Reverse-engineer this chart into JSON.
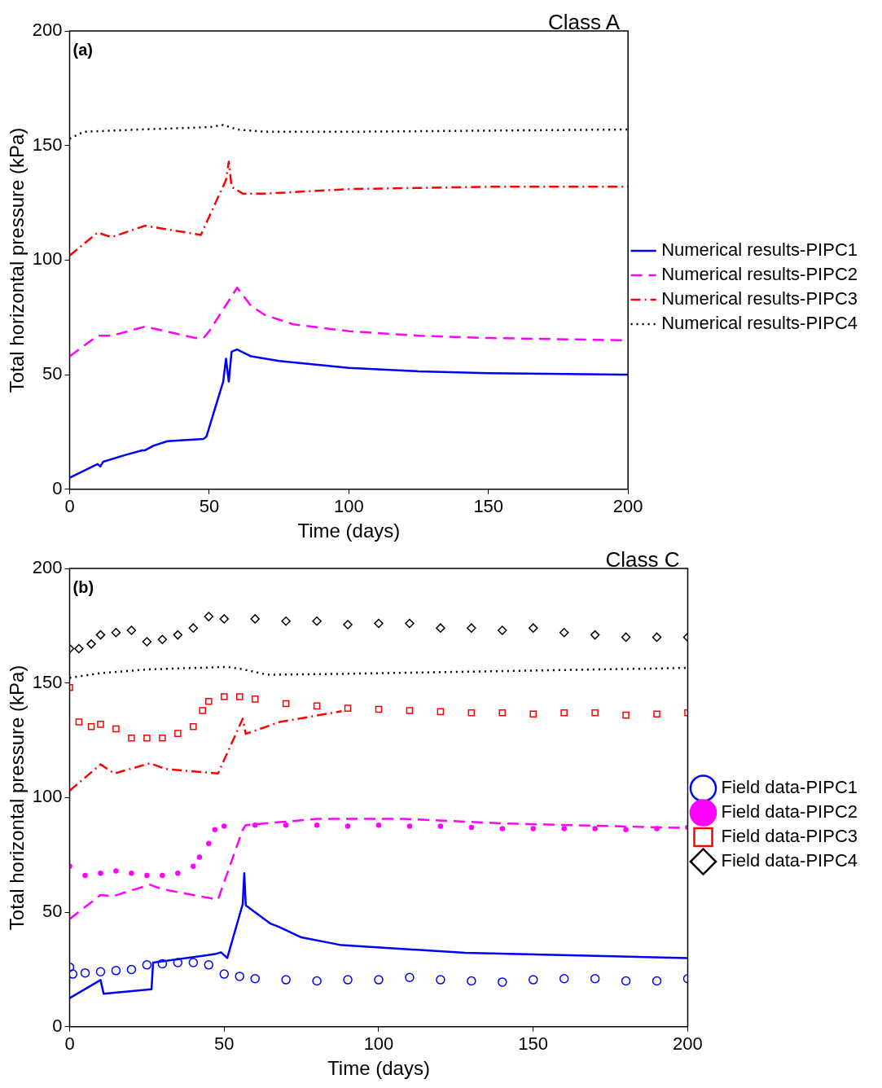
{
  "chart_data": [
    {
      "type": "line",
      "title": "Class A",
      "xlabel": "Time (days)",
      "ylabel": "Total horizontal pressure (kPa)",
      "xlim": [
        0,
        200
      ],
      "xticks": [
        0,
        50,
        100,
        150,
        200
      ],
      "ylim": [
        0,
        200
      ],
      "yticks": [
        0,
        50,
        100,
        150,
        200
      ],
      "grid": false,
      "legend": "right",
      "annotations": [
        "(a)"
      ],
      "series": [
        {
          "name": "Numerical results-PIPC1",
          "color": "#0000ff",
          "line_style": "solid",
          "x": [
            0,
            10,
            11,
            12,
            20,
            26,
            27,
            30,
            35,
            48,
            49,
            55,
            56,
            57,
            58,
            60,
            65,
            75,
            100,
            125,
            150,
            200
          ],
          "values": [
            5,
            11,
            10,
            12,
            15,
            17,
            17,
            19,
            21,
            22,
            23,
            47,
            57,
            47,
            60,
            61,
            58,
            56,
            53,
            51.5,
            50.7,
            50
          ]
        },
        {
          "name": "Numerical results-PIPC2",
          "color": "#ff00ff",
          "line_style": "dashed",
          "x": [
            0,
            10,
            15,
            27,
            45,
            48,
            50,
            60,
            65,
            70,
            80,
            100,
            125,
            150,
            200
          ],
          "values": [
            58,
            67,
            67,
            71,
            66,
            66,
            69,
            88,
            80,
            76,
            72,
            69,
            67,
            66,
            65
          ]
        },
        {
          "name": "Numerical results-PIPC3",
          "color": "#ff0000",
          "line_style": "dashdot",
          "x": [
            0,
            10,
            15,
            27,
            47,
            56,
            57,
            58,
            62,
            70,
            100,
            150,
            200
          ],
          "values": [
            102,
            112,
            110,
            115,
            111,
            135,
            143,
            132,
            129,
            129,
            131,
            132,
            132
          ]
        },
        {
          "name": "Numerical results-PIPC4",
          "color": "#000000",
          "line_style": "dotted",
          "x": [
            0,
            5,
            25,
            50,
            55,
            60,
            70,
            100,
            150,
            200
          ],
          "values": [
            153,
            156,
            157,
            158,
            159,
            157,
            156,
            156,
            156.5,
            157
          ]
        }
      ]
    },
    {
      "type": "line",
      "title": "Class C",
      "xlabel": "Time (days)",
      "ylabel": "Total horizontal pressure (kPa)",
      "xlim": [
        0,
        200
      ],
      "xticks": [
        0,
        50,
        100,
        150,
        200
      ],
      "ylim": [
        0,
        200
      ],
      "yticks": [
        0,
        50,
        100,
        150,
        200
      ],
      "grid": false,
      "legend": "right",
      "annotations": [
        "(b)"
      ],
      "series": [
        {
          "type": "scatter",
          "name": "Field data-PIPC1",
          "color": "#0000ff",
          "marker": "circle",
          "x": [
            0,
            1,
            5,
            10,
            15,
            20,
            25,
            30,
            35,
            40,
            45,
            50,
            55,
            60,
            70,
            80,
            90,
            100,
            110,
            120,
            130,
            140,
            150,
            160,
            170,
            180,
            190,
            200
          ],
          "values": [
            26,
            23,
            23.5,
            24,
            24.5,
            25,
            27,
            27.5,
            28,
            28,
            27,
            23,
            22,
            21,
            20.5,
            20,
            20.5,
            20.5,
            21.5,
            20.5,
            20,
            19.5,
            20.5,
            21,
            21,
            20,
            20,
            21
          ]
        },
        {
          "type": "scatter",
          "name": "Field data-PIPC2",
          "color": "#ff00ff",
          "marker": "point",
          "x": [
            0,
            5,
            10,
            15,
            20,
            25,
            30,
            35,
            40,
            42,
            45,
            47,
            50,
            60,
            70,
            80,
            90,
            100,
            110,
            120,
            130,
            140,
            150,
            160,
            170,
            180,
            190,
            200
          ],
          "values": [
            70,
            66,
            67,
            68,
            67,
            66,
            66,
            67,
            70,
            74,
            80,
            86,
            87.5,
            88,
            88,
            88,
            87.5,
            88,
            87.5,
            87.5,
            87,
            86.5,
            86.5,
            86.5,
            86.5,
            86,
            86.5,
            87
          ]
        },
        {
          "type": "scatter",
          "name": "Field data-PIPC3",
          "color": "#ff0000",
          "marker": "square",
          "x": [
            0,
            3,
            7,
            10,
            15,
            20,
            25,
            30,
            35,
            40,
            43,
            45,
            50,
            55,
            60,
            70,
            80,
            90,
            100,
            110,
            120,
            130,
            140,
            150,
            160,
            170,
            180,
            190,
            200
          ],
          "values": [
            148,
            133,
            131,
            132,
            130,
            126,
            126,
            126,
            128,
            131,
            138,
            142,
            144,
            144,
            143,
            141,
            140,
            139,
            138.5,
            138,
            137.5,
            137,
            137,
            136.5,
            137,
            137,
            136,
            136.5,
            137
          ]
        },
        {
          "type": "scatter",
          "name": "Field data-PIPC4",
          "color": "#000000",
          "marker": "diamond",
          "x": [
            0,
            3,
            7,
            10,
            15,
            20,
            25,
            30,
            35,
            40,
            45,
            50,
            60,
            70,
            80,
            90,
            100,
            110,
            120,
            130,
            140,
            150,
            160,
            170,
            180,
            190,
            200
          ],
          "values": [
            165,
            165,
            167,
            171,
            172,
            173,
            168,
            169,
            171,
            174,
            179,
            178,
            178,
            177,
            177,
            175.5,
            176,
            176,
            174,
            174,
            173,
            174,
            172,
            171,
            170,
            170,
            170
          ]
        },
        {
          "color": "#0000ff",
          "line_style": "solid",
          "x": [
            0,
            10,
            11,
            26.5,
            27,
            47,
            49,
            51,
            56,
            56.5,
            57,
            65,
            67.7,
            75,
            88,
            128,
            200
          ],
          "values": [
            12.5,
            20.4,
            14.4,
            16.4,
            28,
            31.7,
            32.5,
            30,
            53.5,
            67,
            53,
            45,
            43.6,
            39,
            35.6,
            32.3,
            30
          ]
        },
        {
          "color": "#ff00ff",
          "line_style": "dashed",
          "x": [
            0,
            10,
            14,
            26,
            30,
            48,
            56,
            57,
            80,
            108,
            141,
            200
          ],
          "values": [
            47,
            57.5,
            57,
            62,
            60,
            55.5,
            86,
            88,
            90.7,
            90.7,
            88.7,
            86.7
          ]
        },
        {
          "color": "#ff0000",
          "line_style": "dashdot",
          "x": [
            0,
            10,
            14.5,
            26,
            31,
            48,
            56,
            57,
            68,
            88
          ],
          "values": [
            103,
            114.5,
            110.5,
            115,
            112.5,
            110.5,
            134.4,
            127.8,
            133,
            137.7
          ]
        },
        {
          "color": "#000000",
          "line_style": "dotted",
          "x": [
            0,
            10,
            26,
            51,
            56,
            64,
            88,
            200
          ],
          "values": [
            152.3,
            154.3,
            156,
            157,
            156,
            153.6,
            154,
            156.6
          ]
        }
      ]
    }
  ]
}
